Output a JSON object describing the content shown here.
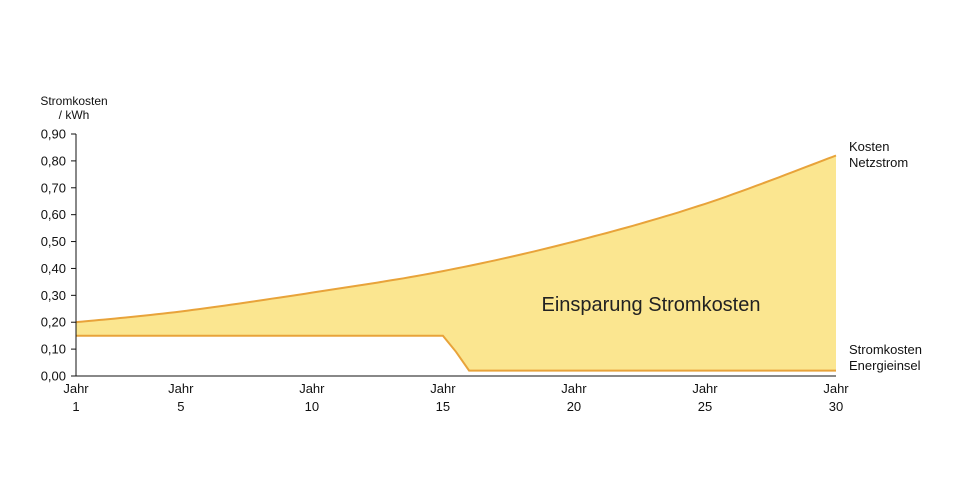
{
  "chart_data": {
    "type": "area",
    "ylabel": [
      "Stromkosten",
      "/ kWh"
    ],
    "ylim": [
      0,
      0.9
    ],
    "xlim": [
      1,
      30
    ],
    "grid": false,
    "yticks": [
      "0,00",
      "0,10",
      "0,20",
      "0,30",
      "0,40",
      "0,50",
      "0,60",
      "0,70",
      "0,80",
      "0,90"
    ],
    "yticks_values": [
      0,
      0.1,
      0.2,
      0.3,
      0.4,
      0.5,
      0.6,
      0.7,
      0.8,
      0.9
    ],
    "xticks": [
      {
        "value": 1,
        "line1": "Jahr",
        "line2": "1"
      },
      {
        "value": 5,
        "line1": "Jahr",
        "line2": "5"
      },
      {
        "value": 10,
        "line1": "Jahr",
        "line2": "10"
      },
      {
        "value": 15,
        "line1": "Jahr",
        "line2": "15"
      },
      {
        "value": 20,
        "line1": "Jahr",
        "line2": "20"
      },
      {
        "value": 25,
        "line1": "Jahr",
        "line2": "25"
      },
      {
        "value": 30,
        "line1": "Jahr",
        "line2": "30"
      }
    ],
    "series": [
      {
        "name": [
          "Kosten",
          "Netzstrom"
        ],
        "color": "#E8A33A",
        "x": [
          1,
          5,
          10,
          15,
          20,
          25,
          30
        ],
        "y": [
          0.2,
          0.24,
          0.31,
          0.39,
          0.5,
          0.64,
          0.82
        ]
      },
      {
        "name": [
          "Stromkosten",
          "Energieinsel"
        ],
        "color": "#E8A33A",
        "x": [
          1,
          15,
          15.5,
          16,
          30
        ],
        "y": [
          0.15,
          0.15,
          0.09,
          0.02,
          0.02
        ]
      }
    ],
    "fill_between": {
      "color": "#FBE690",
      "label": "Einsparung Stromkosten"
    }
  }
}
